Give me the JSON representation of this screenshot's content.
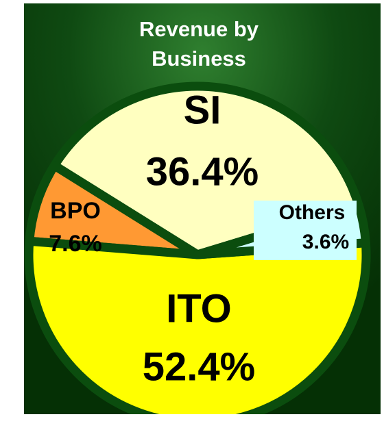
{
  "chart_data": {
    "type": "pie",
    "title": "Revenue by Business",
    "categories": [
      "SI",
      "BPO",
      "ITO",
      "Others"
    ],
    "values": [
      36.4,
      7.6,
      52.4,
      3.6
    ],
    "value_labels": [
      "36.4%",
      "7.6%",
      "52.4%",
      "3.6%"
    ],
    "colors": [
      "#ffffc0",
      "#ff9933",
      "#ffff00",
      "#ccffff"
    ]
  }
}
